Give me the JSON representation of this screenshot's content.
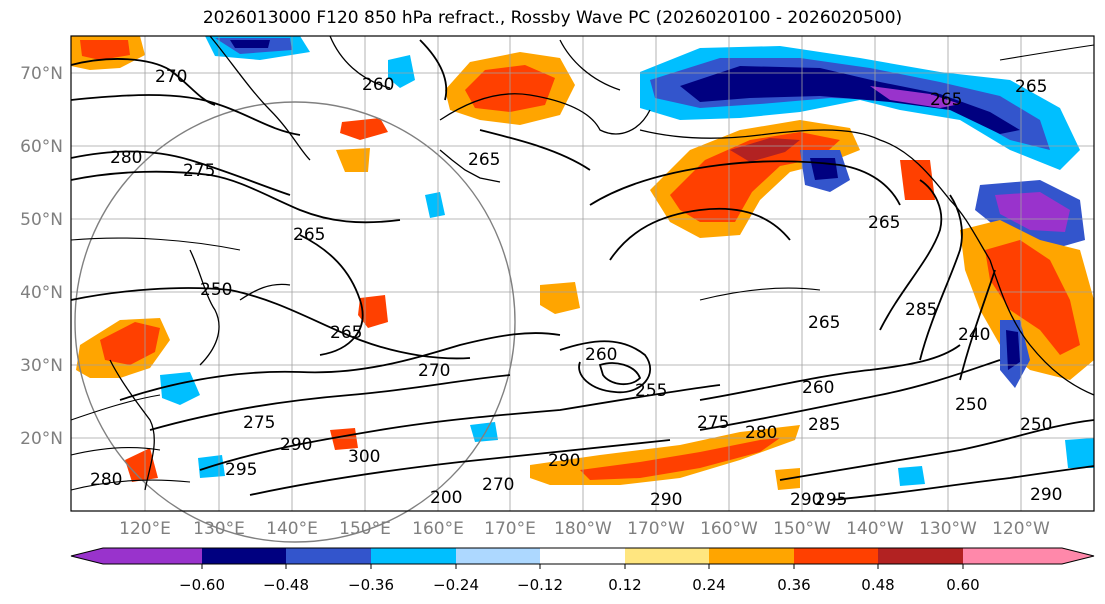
{
  "title": "2026013000 F120 850 hPa refract., Rossby Wave PC (2026020100 - 2026020500)",
  "lat_labels": [
    "70°N",
    "60°N",
    "50°N",
    "40°N",
    "30°N",
    "20°N"
  ],
  "lon_labels": [
    "120°E",
    "130°E",
    "140°E",
    "150°E",
    "160°E",
    "170°E",
    "180°W",
    "170°W",
    "160°W",
    "150°W",
    "140°W",
    "130°W",
    "120°W"
  ],
  "colorbar": {
    "colors": [
      "#9933cc",
      "#000080",
      "#3355cc",
      "#00bfff",
      "#add8ff",
      "#ffffff",
      "#ffe680",
      "#ffa500",
      "#ff4000",
      "#b22222",
      "#ff88aa"
    ],
    "tick_labels": [
      "−0.60",
      "−0.48",
      "−0.36",
      "−0.24",
      "−0.12",
      "0.12",
      "0.24",
      "0.36",
      "0.48",
      "0.60"
    ]
  },
  "contour_labels": [
    "270",
    "260",
    "280",
    "275",
    "265",
    "265",
    "250",
    "265",
    "270",
    "260",
    "255",
    "275",
    "275",
    "290",
    "300",
    "295",
    "290",
    "270",
    "280",
    "290",
    "285",
    "265",
    "260",
    "265",
    "265",
    "265",
    "285",
    "240",
    "250",
    "290",
    "295",
    "200",
    "250",
    "280",
    "290"
  ],
  "colors": {
    "contour": "#000000",
    "grid": "#a0a0a0",
    "axis_label": "#7f7f7f"
  }
}
